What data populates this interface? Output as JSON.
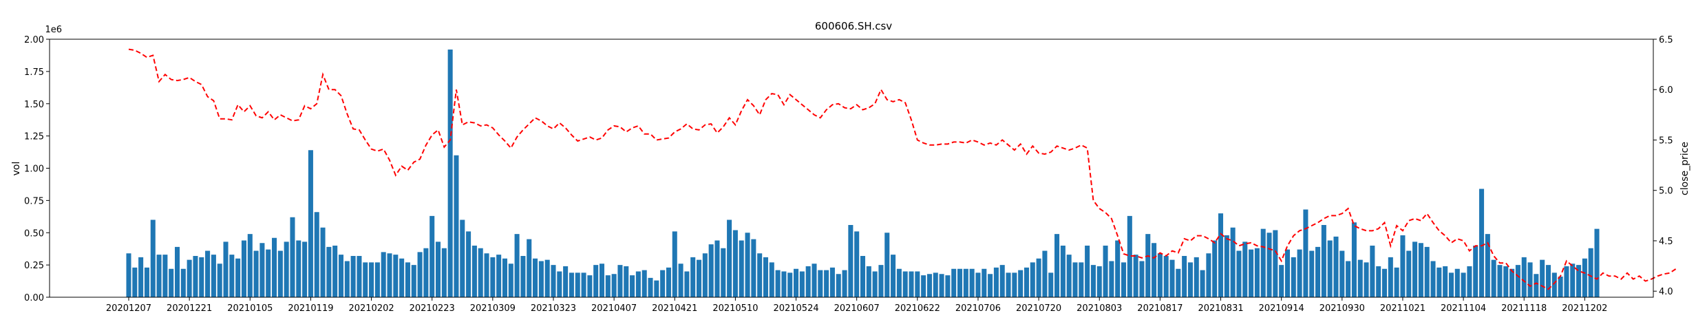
{
  "chart_data": {
    "type": "bar",
    "title": "600606.SH.csv",
    "xlabel": "",
    "ylabel": "vol",
    "y2label": "close_price",
    "y_offset_label": "1e6",
    "ylim": [
      0,
      2000000
    ],
    "y2lim": [
      3.94,
      6.5
    ],
    "yticks": [
      "0.00",
      "0.25",
      "0.50",
      "0.75",
      "1.00",
      "1.25",
      "1.50",
      "1.75",
      "2.00"
    ],
    "y2ticks": [
      "4.0",
      "4.5",
      "5.0",
      "5.5",
      "6.0",
      "6.5"
    ],
    "xticks": [
      {
        "label": "20201207",
        "index": 0
      },
      {
        "label": "20201221",
        "index": 10
      },
      {
        "label": "20210105",
        "index": 20
      },
      {
        "label": "20210119",
        "index": 30
      },
      {
        "label": "20210202",
        "index": 40
      },
      {
        "label": "20210223",
        "index": 50
      },
      {
        "label": "20210309",
        "index": 60
      },
      {
        "label": "20210323",
        "index": 70
      },
      {
        "label": "20210407",
        "index": 80
      },
      {
        "label": "20210421",
        "index": 90
      },
      {
        "label": "20210510",
        "index": 100
      },
      {
        "label": "20210524",
        "index": 110
      },
      {
        "label": "20210607",
        "index": 120
      },
      {
        "label": "20210622",
        "index": 130
      },
      {
        "label": "20210706",
        "index": 140
      },
      {
        "label": "20210720",
        "index": 150
      },
      {
        "label": "20210803",
        "index": 160
      },
      {
        "label": "20210817",
        "index": 170
      },
      {
        "label": "20210831",
        "index": 180
      },
      {
        "label": "20210914",
        "index": 190
      },
      {
        "label": "20210930",
        "index": 200
      },
      {
        "label": "20211021",
        "index": 210
      },
      {
        "label": "20211104",
        "index": 220
      },
      {
        "label": "20211118",
        "index": 230
      },
      {
        "label": "20211202",
        "index": 240
      }
    ],
    "series": [
      {
        "kind": "bar",
        "axis": "left",
        "color": "#1f77b4",
        "values": [
          340000,
          230000,
          310000,
          230000,
          600000,
          330000,
          330000,
          220000,
          390000,
          220000,
          290000,
          320000,
          310000,
          360000,
          330000,
          260000,
          430000,
          330000,
          300000,
          440000,
          490000,
          360000,
          420000,
          370000,
          460000,
          360000,
          430000,
          620000,
          440000,
          430000,
          1140000,
          660000,
          540000,
          390000,
          400000,
          330000,
          280000,
          320000,
          320000,
          270000,
          270000,
          270000,
          350000,
          340000,
          330000,
          300000,
          270000,
          250000,
          350000,
          380000,
          630000,
          430000,
          380000,
          1920000,
          1100000,
          600000,
          510000,
          400000,
          380000,
          340000,
          310000,
          330000,
          300000,
          260000,
          490000,
          320000,
          450000,
          300000,
          280000,
          290000,
          250000,
          200000,
          240000,
          190000,
          190000,
          190000,
          170000,
          250000,
          260000,
          170000,
          180000,
          250000,
          240000,
          170000,
          200000,
          210000,
          150000,
          130000,
          210000,
          230000,
          510000,
          260000,
          200000,
          310000,
          290000,
          340000,
          410000,
          440000,
          380000,
          600000,
          520000,
          440000,
          500000,
          450000,
          340000,
          310000,
          270000,
          210000,
          200000,
          190000,
          220000,
          200000,
          240000,
          260000,
          210000,
          210000,
          230000,
          180000,
          210000,
          560000,
          510000,
          320000,
          240000,
          200000,
          250000,
          500000,
          330000,
          220000,
          200000,
          200000,
          200000,
          170000,
          180000,
          190000,
          180000,
          170000,
          220000,
          220000,
          220000,
          220000,
          190000,
          220000,
          180000,
          230000,
          250000,
          190000,
          190000,
          210000,
          230000,
          270000,
          300000,
          360000,
          190000,
          490000,
          400000,
          330000,
          270000,
          270000,
          400000,
          250000,
          240000,
          400000,
          280000,
          440000,
          270000,
          630000,
          330000,
          280000,
          490000,
          420000,
          340000,
          320000,
          290000,
          220000,
          320000,
          270000,
          310000,
          210000,
          340000,
          440000,
          650000,
          480000,
          540000,
          360000,
          430000,
          370000,
          380000,
          530000,
          500000,
          520000,
          250000,
          370000,
          310000,
          370000,
          680000,
          360000,
          390000,
          560000,
          440000,
          470000,
          360000,
          280000,
          580000,
          290000,
          270000,
          400000,
          240000,
          220000,
          310000,
          230000,
          480000,
          360000,
          430000,
          420000,
          390000,
          280000,
          230000,
          240000,
          190000,
          220000,
          190000,
          240000,
          400000,
          840000,
          490000,
          290000,
          250000,
          240000,
          220000,
          250000,
          310000,
          270000,
          180000,
          290000,
          250000,
          190000,
          160000,
          240000,
          260000,
          250000,
          300000,
          380000,
          530000
        ]
      },
      {
        "kind": "line",
        "axis": "right",
        "color": "#ff0000",
        "style": "dashed",
        "values": [
          6.4,
          6.39,
          6.36,
          6.32,
          6.34,
          6.08,
          6.15,
          6.1,
          6.09,
          6.1,
          6.12,
          6.08,
          6.05,
          5.93,
          5.89,
          5.71,
          5.71,
          5.7,
          5.85,
          5.78,
          5.84,
          5.74,
          5.72,
          5.78,
          5.7,
          5.75,
          5.72,
          5.69,
          5.7,
          5.84,
          5.81,
          5.86,
          6.15,
          6.0,
          6.0,
          5.94,
          5.76,
          5.61,
          5.6,
          5.5,
          5.41,
          5.39,
          5.41,
          5.3,
          5.15,
          5.24,
          5.2,
          5.28,
          5.31,
          5.45,
          5.55,
          5.6,
          5.43,
          5.5,
          6.0,
          5.65,
          5.68,
          5.67,
          5.64,
          5.65,
          5.62,
          5.55,
          5.49,
          5.42,
          5.53,
          5.6,
          5.66,
          5.72,
          5.69,
          5.64,
          5.61,
          5.67,
          5.62,
          5.55,
          5.49,
          5.51,
          5.53,
          5.5,
          5.52,
          5.6,
          5.64,
          5.63,
          5.58,
          5.62,
          5.64,
          5.56,
          5.56,
          5.5,
          5.51,
          5.52,
          5.58,
          5.61,
          5.66,
          5.61,
          5.6,
          5.65,
          5.66,
          5.57,
          5.63,
          5.72,
          5.65,
          5.79,
          5.9,
          5.84,
          5.75,
          5.9,
          5.96,
          5.95,
          5.85,
          5.95,
          5.9,
          5.85,
          5.8,
          5.75,
          5.72,
          5.8,
          5.85,
          5.86,
          5.82,
          5.81,
          5.85,
          5.8,
          5.82,
          5.86,
          6.0,
          5.9,
          5.88,
          5.9,
          5.87,
          5.7,
          5.5,
          5.47,
          5.45,
          5.45,
          5.46,
          5.46,
          5.48,
          5.48,
          5.47,
          5.5,
          5.48,
          5.45,
          5.47,
          5.45,
          5.5,
          5.45,
          5.4,
          5.46,
          5.36,
          5.44,
          5.37,
          5.36,
          5.38,
          5.44,
          5.42,
          5.4,
          5.42,
          5.45,
          5.42,
          4.9,
          4.82,
          4.78,
          4.72,
          4.55,
          4.37,
          4.35,
          4.35,
          4.33,
          4.35,
          4.33,
          4.38,
          4.35,
          4.4,
          4.38,
          4.52,
          4.5,
          4.55,
          4.55,
          4.52,
          4.48,
          4.57,
          4.52,
          4.5,
          4.45,
          4.47,
          4.48,
          4.45,
          4.44,
          4.42,
          4.4,
          4.3,
          4.45,
          4.55,
          4.6,
          4.62,
          4.65,
          4.68,
          4.72,
          4.75,
          4.75,
          4.77,
          4.82,
          4.65,
          4.62,
          4.6,
          4.6,
          4.62,
          4.68,
          4.45,
          4.65,
          4.6,
          4.7,
          4.72,
          4.7,
          4.77,
          4.68,
          4.6,
          4.55,
          4.48,
          4.52,
          4.5,
          4.4,
          4.45,
          4.45,
          4.48,
          4.35,
          4.28,
          4.28,
          4.2,
          4.15,
          4.1,
          4.05,
          4.08,
          4.05,
          4.02,
          4.08,
          4.15,
          4.3,
          4.25,
          4.2,
          4.18,
          4.15,
          4.12,
          4.18,
          4.15,
          4.15,
          4.12,
          4.18,
          4.12,
          4.15,
          4.1,
          4.12,
          4.15,
          4.17,
          4.18,
          4.22
        ]
      }
    ]
  }
}
